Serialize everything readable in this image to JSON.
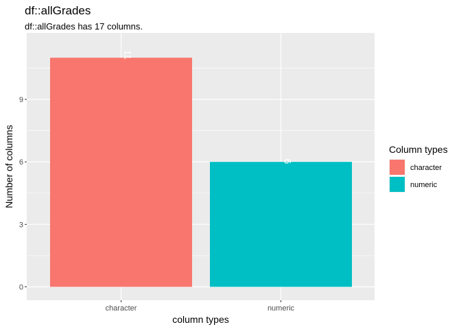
{
  "chart_data": {
    "type": "bar",
    "title": "df::allGrades",
    "subtitle": "df::allGrades has 17 columns.",
    "xlabel": "column types",
    "ylabel": "Number of columns",
    "categories": [
      "character",
      "numeric"
    ],
    "values": [
      11,
      6
    ],
    "colors": [
      "#F8766D",
      "#00BFC4"
    ],
    "data_labels": [
      "11",
      "6"
    ],
    "ylim": [
      0,
      11.55
    ],
    "yticks": [
      0,
      3,
      6,
      9
    ],
    "grid": true,
    "panel_background": "#EBEBEB",
    "legend": {
      "title": "Column types",
      "position": "right",
      "entries": [
        "character",
        "numeric"
      ]
    }
  }
}
